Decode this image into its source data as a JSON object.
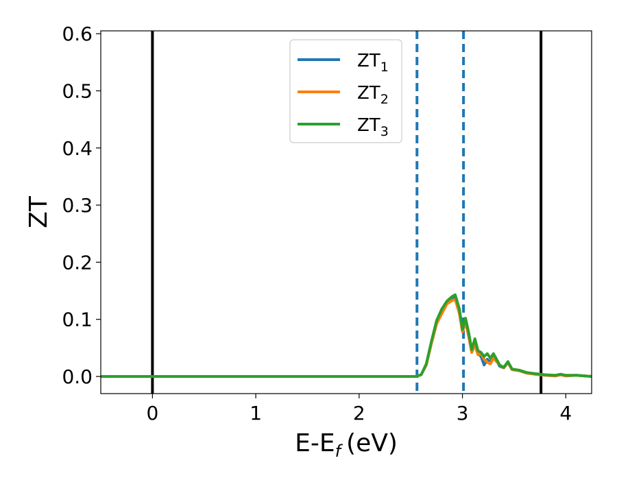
{
  "chart_data": {
    "type": "line",
    "xlabel": "E-E",
    "xlabel_sub": "f",
    "xlabel_unit": "(eV)",
    "ylabel": "ZT",
    "xlim": [
      -0.5,
      4.25
    ],
    "ylim": [
      -0.03,
      0.605
    ],
    "xticks": [
      0,
      1,
      2,
      3,
      4
    ],
    "xtick_labels": [
      "0",
      "1",
      "2",
      "3",
      "4"
    ],
    "yticks": [
      0.0,
      0.1,
      0.2,
      0.3,
      0.4,
      0.5,
      0.6
    ],
    "ytick_labels": [
      "0.0",
      "0.1",
      "0.2",
      "0.3",
      "0.4",
      "0.5",
      "0.6"
    ],
    "grid": false,
    "legend_position": "top-center",
    "vlines": [
      {
        "x": 0.0,
        "style": "solid",
        "color": "#000000"
      },
      {
        "x": 3.76,
        "style": "solid",
        "color": "#000000"
      },
      {
        "x": 2.56,
        "style": "dashed",
        "color": "#1f77b4"
      },
      {
        "x": 3.01,
        "style": "dashed",
        "color": "#1f77b4"
      }
    ],
    "series": [
      {
        "name": "ZT",
        "name_sub": "1",
        "color": "#1f77b4",
        "x": [
          -0.5,
          2.55,
          2.6,
          2.65,
          2.7,
          2.75,
          2.8,
          2.85,
          2.9,
          2.93,
          2.97,
          3.0,
          3.03,
          3.06,
          3.09,
          3.12,
          3.15,
          3.18,
          3.21,
          3.24,
          3.27,
          3.3,
          3.33,
          3.36,
          3.4,
          3.44,
          3.48,
          3.55,
          3.62,
          3.7,
          3.8,
          3.9,
          3.95,
          4.0,
          4.1,
          4.25
        ],
        "y": [
          0.0,
          0.0,
          0.003,
          0.02,
          0.06,
          0.095,
          0.115,
          0.13,
          0.137,
          0.14,
          0.115,
          0.08,
          0.1,
          0.075,
          0.045,
          0.06,
          0.04,
          0.035,
          0.02,
          0.03,
          0.025,
          0.035,
          0.028,
          0.018,
          0.015,
          0.025,
          0.012,
          0.01,
          0.006,
          0.004,
          0.002,
          0.001,
          0.003,
          0.001,
          0.002,
          0.0
        ]
      },
      {
        "name": "ZT",
        "name_sub": "2",
        "color": "#ff7f0e",
        "x": [
          -0.5,
          2.55,
          2.6,
          2.65,
          2.7,
          2.75,
          2.8,
          2.85,
          2.9,
          2.93,
          2.97,
          3.0,
          3.03,
          3.06,
          3.09,
          3.12,
          3.15,
          3.18,
          3.21,
          3.24,
          3.27,
          3.3,
          3.33,
          3.36,
          3.4,
          3.44,
          3.48,
          3.55,
          3.62,
          3.7,
          3.8,
          3.9,
          3.95,
          4.0,
          4.1,
          4.25
        ],
        "y": [
          0.0,
          0.0,
          0.003,
          0.02,
          0.058,
          0.092,
          0.11,
          0.127,
          0.133,
          0.135,
          0.11,
          0.078,
          0.095,
          0.07,
          0.042,
          0.055,
          0.038,
          0.04,
          0.03,
          0.025,
          0.022,
          0.032,
          0.026,
          0.02,
          0.015,
          0.024,
          0.012,
          0.01,
          0.006,
          0.004,
          0.002,
          0.001,
          0.003,
          0.001,
          0.002,
          0.0
        ]
      },
      {
        "name": "ZT",
        "name_sub": "3",
        "color": "#2ca02c",
        "x": [
          -0.5,
          2.55,
          2.6,
          2.65,
          2.7,
          2.75,
          2.8,
          2.85,
          2.9,
          2.93,
          2.97,
          3.0,
          3.03,
          3.06,
          3.09,
          3.12,
          3.15,
          3.18,
          3.21,
          3.24,
          3.27,
          3.3,
          3.33,
          3.36,
          3.4,
          3.44,
          3.48,
          3.55,
          3.62,
          3.7,
          3.8,
          3.9,
          3.95,
          4.0,
          4.1,
          4.25
        ],
        "y": [
          0.0,
          0.0,
          0.003,
          0.022,
          0.062,
          0.098,
          0.118,
          0.132,
          0.14,
          0.143,
          0.118,
          0.082,
          0.102,
          0.077,
          0.047,
          0.066,
          0.045,
          0.042,
          0.035,
          0.04,
          0.032,
          0.04,
          0.03,
          0.02,
          0.016,
          0.026,
          0.013,
          0.011,
          0.007,
          0.005,
          0.003,
          0.002,
          0.004,
          0.002,
          0.002,
          0.0
        ]
      }
    ]
  }
}
